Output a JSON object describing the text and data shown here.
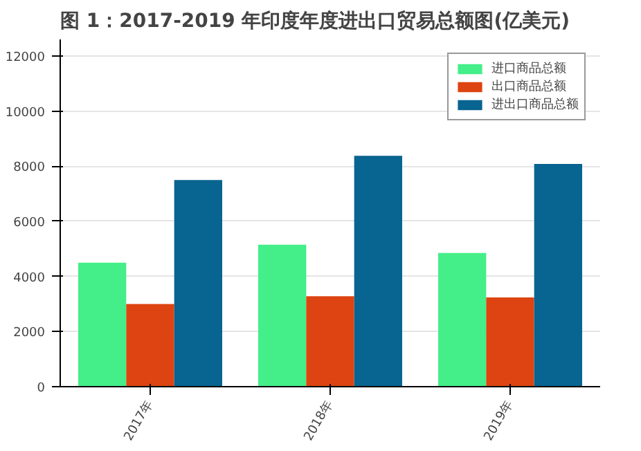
{
  "chart_data": {
    "type": "bar",
    "title": "图 1：2017-2019 年印度年度进出口贸易总额图(亿美元)",
    "categories": [
      "2017年",
      "2018年",
      "2019年"
    ],
    "series": [
      {
        "name": "进口商品总额",
        "color": "#44ee88",
        "values": [
          4500,
          5150,
          4850
        ]
      },
      {
        "name": "出口商品总额",
        "color": "#dd4411",
        "values": [
          3000,
          3280,
          3240
        ]
      },
      {
        "name": "进出口商品总额",
        "color": "#086490",
        "values": [
          7500,
          8380,
          8080
        ]
      }
    ],
    "ylim": [
      0,
      12600
    ],
    "yticks": [
      0,
      2000,
      4000,
      6000,
      8000,
      10000,
      12000
    ],
    "grid": "y",
    "legend": "top right"
  }
}
